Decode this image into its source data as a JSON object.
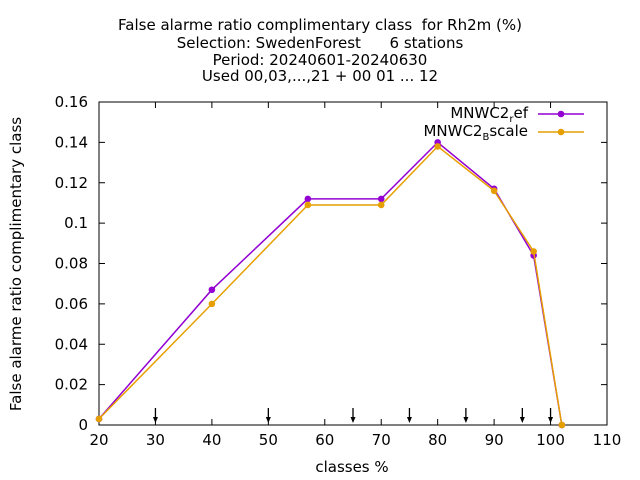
{
  "colors": {
    "series1": "#9400d3",
    "series2": "#e69f00",
    "axis": "#000000"
  },
  "chart_data": {
    "type": "line",
    "title_lines": [
      "False alarme ratio complimentary class  for Rh2m (%)",
      "Selection: SwedenForest      6 stations",
      "Period: 20240601-20240630",
      "Used 00,03,...,21 + 00 01 ... 12"
    ],
    "xlabel": "classes %",
    "ylabel": "False alarme ratio complimentary class",
    "xlim": [
      20,
      110
    ],
    "ylim": [
      0,
      0.16
    ],
    "xticks": [
      20,
      30,
      40,
      50,
      60,
      70,
      80,
      90,
      100,
      110
    ],
    "yticks": [
      0,
      0.02,
      0.04,
      0.06,
      0.08,
      0.1,
      0.12,
      0.14,
      0.16
    ],
    "xtick_labels": [
      "20",
      "30",
      "40",
      "50",
      "60",
      "70",
      "80",
      "90",
      "100",
      "110"
    ],
    "ytick_labels": [
      "0",
      "0.02",
      "0.04",
      "0.06",
      "0.08",
      "0.1",
      "0.12",
      "0.14",
      "0.16"
    ],
    "legend_position": "top-right",
    "legend": [
      {
        "base": "MNWC2",
        "sub": "r",
        "rest": "ef"
      },
      {
        "base": "MNWC2",
        "sub": "B",
        "rest": "scale"
      }
    ],
    "series": [
      {
        "name": "MNWC2_ref",
        "color": "#9400d3",
        "x": [
          20,
          40,
          57,
          70,
          80,
          90,
          97,
          102
        ],
        "y": [
          0.003,
          0.067,
          0.112,
          0.112,
          0.14,
          0.117,
          0.084,
          0.0
        ]
      },
      {
        "name": "MNWC2_Bscale",
        "color": "#e69f00",
        "x": [
          20,
          40,
          57,
          70,
          80,
          90,
          97,
          102
        ],
        "y": [
          0.003,
          0.06,
          0.109,
          0.109,
          0.138,
          0.116,
          0.086,
          0.0
        ]
      }
    ],
    "arrow_markers_x": [
      30,
      50,
      65,
      75,
      85,
      95,
      100
    ]
  }
}
